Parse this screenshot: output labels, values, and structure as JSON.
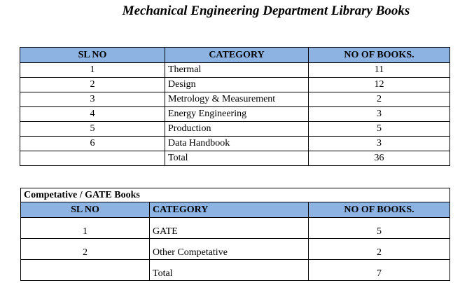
{
  "title": "Mechanical Engineering Department Library Books",
  "table1": {
    "headers": [
      "SL NO",
      "CATEGORY",
      "NO OF BOOKS."
    ],
    "rows": [
      [
        "1",
        "Thermal",
        "11"
      ],
      [
        "2",
        "Design",
        "12"
      ],
      [
        "3",
        "Metrology & Measurement",
        "2"
      ],
      [
        "4",
        "Energy Engineering",
        "3"
      ],
      [
        "5",
        "Production",
        "5"
      ],
      [
        "6",
        "Data Handbook",
        "3"
      ],
      [
        "",
        "Total",
        "36"
      ]
    ]
  },
  "table2": {
    "caption": "Competative / GATE Books",
    "headers": [
      "SL NO",
      "CATEGORY",
      "NO OF BOOKS."
    ],
    "rows": [
      [
        "1",
        "GATE",
        "5"
      ],
      [
        "2",
        "Other Competative",
        "2"
      ],
      [
        "",
        "Total",
        "7"
      ]
    ]
  },
  "colors": {
    "header_bg": "#8db3e2"
  }
}
